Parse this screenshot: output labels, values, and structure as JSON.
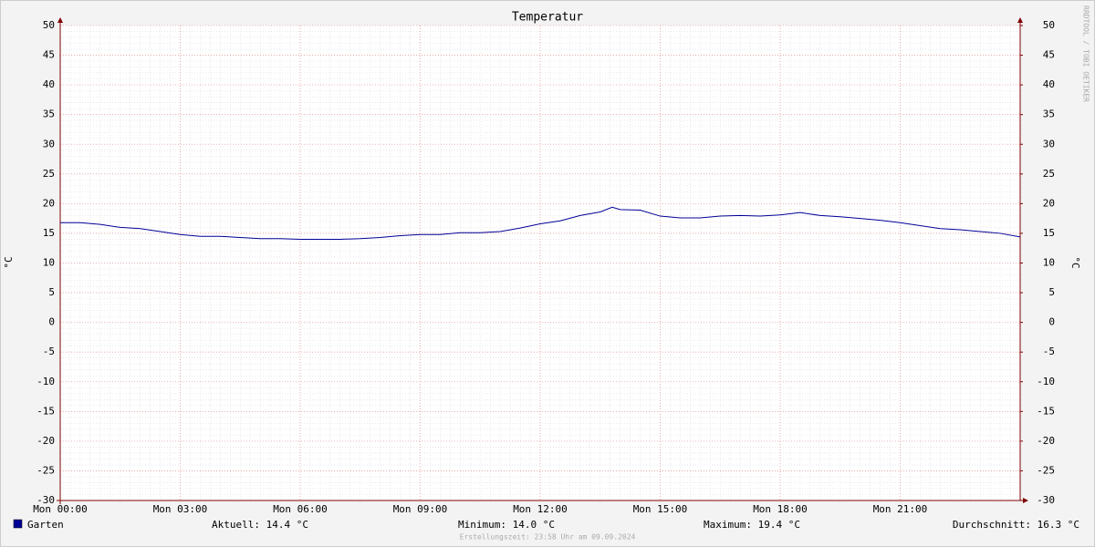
{
  "chart_data": {
    "type": "line",
    "title": "Temperatur",
    "y_label": "°C",
    "y2_label": "°C",
    "watermark": "RRDTOOL / TOBI OETIKER",
    "x": [
      0,
      0.5,
      1,
      1.5,
      2,
      2.5,
      3,
      3.5,
      4,
      4.5,
      5,
      5.5,
      6,
      6.5,
      7,
      7.5,
      8,
      8.5,
      9,
      9.5,
      10,
      10.5,
      11,
      11.5,
      12,
      12.5,
      13,
      13.5,
      13.8,
      14,
      14.5,
      15,
      15.5,
      16,
      16.5,
      17,
      17.5,
      18,
      18.5,
      19,
      19.5,
      20,
      20.5,
      21,
      21.5,
      22,
      22.5,
      23,
      23.5,
      24
    ],
    "series": [
      {
        "name": "Garten",
        "color": "#000096",
        "values": [
          16.8,
          16.8,
          16.5,
          16.0,
          15.8,
          15.3,
          14.8,
          14.5,
          14.5,
          14.3,
          14.1,
          14.1,
          14.0,
          14.0,
          14.0,
          14.1,
          14.3,
          14.6,
          14.8,
          14.8,
          15.1,
          15.1,
          15.3,
          15.9,
          16.6,
          17.1,
          18.0,
          18.6,
          19.4,
          19.0,
          18.9,
          17.9,
          17.6,
          17.6,
          17.9,
          18.0,
          17.9,
          18.1,
          18.5,
          18.0,
          17.8,
          17.5,
          17.2,
          16.8,
          16.3,
          15.8,
          15.6,
          15.3,
          15.0,
          14.4
        ]
      }
    ],
    "xlim": [
      0,
      24
    ],
    "xticks": [
      {
        "value": 0,
        "label": "Mon 00:00"
      },
      {
        "value": 3,
        "label": "Mon 03:00"
      },
      {
        "value": 6,
        "label": "Mon 06:00"
      },
      {
        "value": 9,
        "label": "Mon 09:00"
      },
      {
        "value": 12,
        "label": "Mon 12:00"
      },
      {
        "value": 15,
        "label": "Mon 15:00"
      },
      {
        "value": 18,
        "label": "Mon 18:00"
      },
      {
        "value": 21,
        "label": "Mon 21:00"
      }
    ],
    "ylim": [
      -30,
      50
    ],
    "yticks": [
      -30,
      -25,
      -20,
      -15,
      -10,
      -5,
      0,
      5,
      10,
      15,
      20,
      25,
      30,
      35,
      40,
      45,
      50
    ],
    "y2lim": [
      -30,
      50
    ],
    "y2ticks": [
      -30,
      -25,
      -20,
      -15,
      -10,
      -5,
      0,
      5,
      10,
      15,
      20,
      25,
      30,
      35,
      40,
      45,
      50
    ],
    "grid": true,
    "stats": [
      "Aktuell: 14.4 °C",
      "Minimum: 14.0 °C",
      "Maximum: 19.4 °C",
      "Durchschnitt: 16.3 °C"
    ],
    "footer": "Erstellungszeit: 23:58 Uhr am 09.09.2024"
  }
}
